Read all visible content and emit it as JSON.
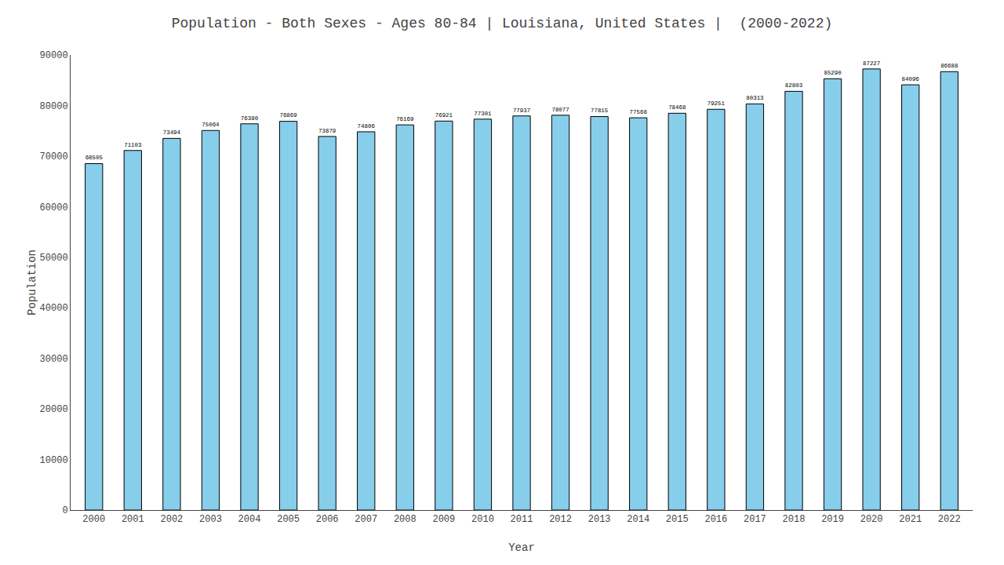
{
  "chart_data": {
    "type": "bar",
    "title": "Population - Both Sexes - Ages 80-84 | Louisiana, United States |  (2000-2022)",
    "x_label": "Year",
    "y_label": "Population",
    "categories": [
      "2000",
      "2001",
      "2002",
      "2003",
      "2004",
      "2005",
      "2006",
      "2007",
      "2008",
      "2009",
      "2010",
      "2011",
      "2012",
      "2013",
      "2014",
      "2015",
      "2016",
      "2017",
      "2018",
      "2019",
      "2020",
      "2021",
      "2022"
    ],
    "values": [
      68505,
      71103,
      73494,
      75064,
      76380,
      76869,
      73879,
      74806,
      76169,
      76921,
      77301,
      77937,
      78077,
      77815,
      77568,
      78468,
      79251,
      80313,
      82803,
      85290,
      87227,
      84096,
      86688
    ],
    "color": "#87CEEB",
    "ylim": [
      0,
      90000
    ],
    "yticks": [
      0,
      10000,
      20000,
      30000,
      40000,
      50000,
      60000,
      70000,
      80000,
      90000
    ],
    "grid": false,
    "data_labels": true
  }
}
